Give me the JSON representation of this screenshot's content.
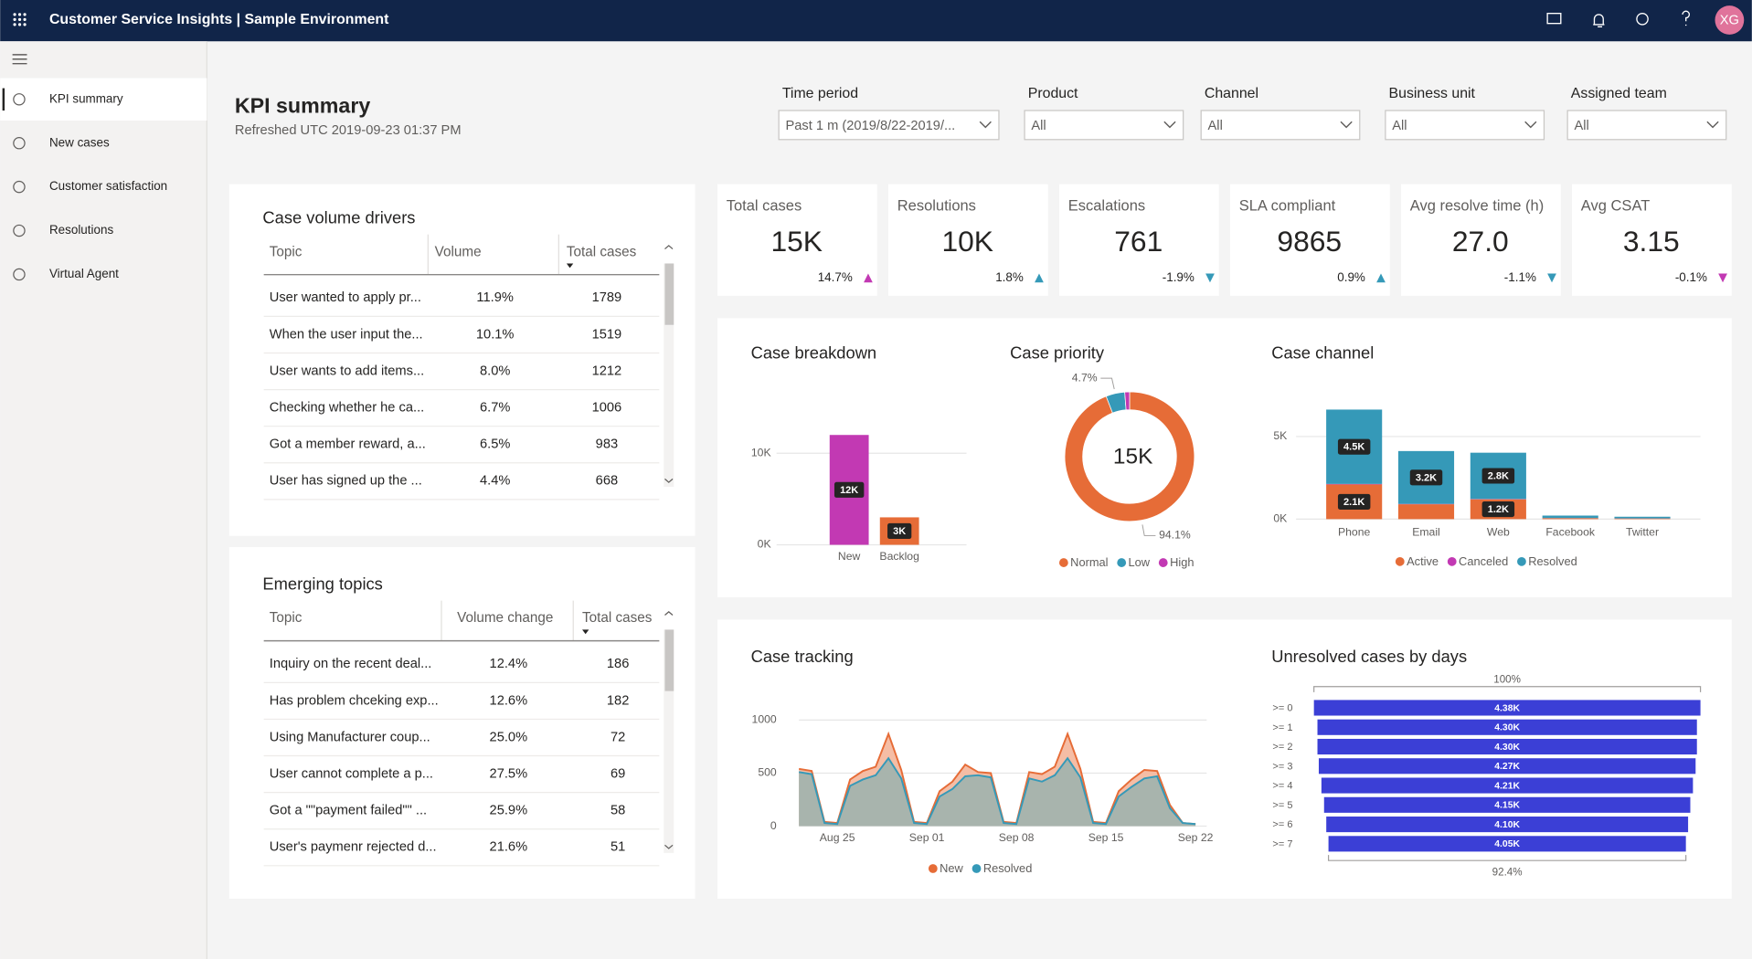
{
  "header": {
    "app_title": "Customer Service Insights | Sample Environment",
    "avatar": "XG"
  },
  "nav": [
    "KPI summary",
    "New cases",
    "Customer satisfaction",
    "Resolutions",
    "Virtual Agent"
  ],
  "page": {
    "title": "KPI summary",
    "refreshed": "Refreshed UTC 2019-09-23 01:37 PM"
  },
  "filters": [
    {
      "label": "Time period",
      "value": "Past 1 m (2019/8/22-2019/..."
    },
    {
      "label": "Product",
      "value": "All"
    },
    {
      "label": "Channel",
      "value": "All"
    },
    {
      "label": "Business unit",
      "value": "All"
    },
    {
      "label": "Assigned team",
      "value": "All"
    }
  ],
  "case_volume_drivers": {
    "title": "Case volume drivers",
    "columns": [
      "Topic",
      "Volume",
      "Total cases"
    ],
    "rows": [
      [
        "User wanted to apply pr...",
        "11.9%",
        "1789"
      ],
      [
        "When the user input the...",
        "10.1%",
        "1519"
      ],
      [
        "User wants to add items...",
        "8.0%",
        "1212"
      ],
      [
        "Checking whether he ca...",
        "6.7%",
        "1006"
      ],
      [
        "Got a member reward, a...",
        "6.5%",
        "983"
      ],
      [
        "User has signed up the ...",
        "4.4%",
        "668"
      ]
    ]
  },
  "emerging_topics": {
    "title": "Emerging topics",
    "columns": [
      "Topic",
      "Volume change",
      "Total cases"
    ],
    "rows": [
      [
        "Inquiry on the recent deal...",
        "12.4%",
        "186"
      ],
      [
        "Has problem chceking exp...",
        "12.6%",
        "182"
      ],
      [
        "Using Manufacturer coup...",
        "25.0%",
        "72"
      ],
      [
        "User cannot complete a p...",
        "27.5%",
        "69"
      ],
      [
        "Got a \"\"payment failed\"\" ...",
        "25.9%",
        "58"
      ],
      [
        "User's paymenr rejected d...",
        "21.6%",
        "51"
      ]
    ]
  },
  "kpis": [
    {
      "label": "Total cases",
      "value": "15K",
      "change": "14.7%",
      "trend": "up",
      "trend_color": "#c239b3"
    },
    {
      "label": "Resolutions",
      "value": "10K",
      "change": "1.8%",
      "trend": "up",
      "trend_color": "#3599b8"
    },
    {
      "label": "Escalations",
      "value": "761",
      "change": "-1.9%",
      "trend": "down",
      "trend_color": "#3599b8"
    },
    {
      "label": "SLA compliant",
      "value": "9865",
      "change": "0.9%",
      "trend": "up",
      "trend_color": "#3599b8"
    },
    {
      "label": "Avg resolve time (h)",
      "value": "27.0",
      "change": "-1.1%",
      "trend": "down",
      "trend_color": "#3599b8"
    },
    {
      "label": "Avg CSAT",
      "value": "3.15",
      "change": "-0.1%",
      "trend": "down",
      "trend_color": "#c239b3"
    }
  ],
  "chart_data": [
    {
      "type": "bar",
      "title": "Case breakdown",
      "categories": [
        "New",
        "Backlog"
      ],
      "values": [
        12000,
        3000
      ],
      "value_labels": [
        "12K",
        "3K"
      ],
      "colors": [
        "#c239b3",
        "#e66c37"
      ],
      "ylim": [
        0,
        12000
      ],
      "yticks": [
        {
          "value": 0,
          "label": "0K"
        },
        {
          "value": 10000,
          "label": "10K"
        }
      ],
      "grid": true
    },
    {
      "type": "donut",
      "title": "Case priority",
      "center_label": "15K",
      "categories": [
        "Normal",
        "Low",
        "High"
      ],
      "values": [
        94.1,
        4.7,
        1.2
      ],
      "value_labels": [
        "94.1%",
        "4.7%",
        null
      ],
      "colors": [
        "#e66c37",
        "#3599b8",
        "#c239b3"
      ]
    },
    {
      "type": "stacked_bar",
      "title": "Case channel",
      "categories": [
        "Phone",
        "Email",
        "Web",
        "Facebook",
        "Twitter"
      ],
      "series": [
        {
          "name": "Active",
          "color": "#e66c37",
          "values": [
            2100,
            900,
            1200,
            60,
            40
          ],
          "value_labels": [
            "2.1K",
            null,
            "1.2K",
            null,
            null
          ]
        },
        {
          "name": "Canceled",
          "color": "#c239b3",
          "values": [
            30,
            20,
            20,
            5,
            5
          ],
          "value_labels": [
            null,
            null,
            null,
            null,
            null
          ]
        },
        {
          "name": "Resolved",
          "color": "#3599b8",
          "values": [
            4500,
            3200,
            2800,
            150,
            100
          ],
          "value_labels": [
            "4.5K",
            "3.2K",
            "2.8K",
            null,
            null
          ]
        }
      ],
      "ylim": [
        0,
        7000
      ],
      "yticks": [
        {
          "value": 0,
          "label": "0K"
        },
        {
          "value": 5000,
          "label": "5K"
        }
      ],
      "grid": true
    },
    {
      "type": "area",
      "title": "Case tracking",
      "categories": [
        null,
        null,
        null,
        "Aug 25",
        null,
        null,
        null,
        null,
        null,
        null,
        "Sep 01",
        null,
        null,
        null,
        null,
        null,
        null,
        "Sep 08",
        null,
        null,
        null,
        null,
        null,
        null,
        "Sep 15",
        null,
        null,
        null,
        null,
        null,
        null,
        "Sep 22"
      ],
      "series": [
        {
          "name": "New",
          "color": "#e66c37",
          "fill": "#f4b9a0",
          "values": [
            540,
            520,
            40,
            30,
            440,
            520,
            560,
            870,
            530,
            40,
            30,
            330,
            420,
            580,
            510,
            500,
            40,
            30,
            510,
            490,
            560,
            870,
            540,
            40,
            30,
            330,
            440,
            530,
            520,
            200,
            30,
            20
          ]
        },
        {
          "name": "Resolved",
          "color": "#3599b8",
          "fill": "#a3b3ad",
          "values": [
            510,
            490,
            30,
            20,
            380,
            440,
            480,
            640,
            450,
            30,
            20,
            280,
            350,
            470,
            480,
            460,
            30,
            20,
            450,
            420,
            480,
            640,
            460,
            30,
            20,
            280,
            370,
            450,
            470,
            170,
            30,
            20
          ]
        }
      ],
      "ylim": [
        0,
        1000
      ],
      "yticks": [
        0,
        500,
        1000
      ],
      "grid": true
    },
    {
      "type": "funnel",
      "title": "Unresolved cases by days",
      "color": "#3b3fd6",
      "top_label": "100%",
      "bottom_label": "92.4%",
      "categories": [
        ">= 0",
        ">= 1",
        ">= 2",
        ">= 3",
        ">= 4",
        ">= 5",
        ">= 6",
        ">= 7"
      ],
      "values": [
        4380,
        4300,
        4300,
        4270,
        4210,
        4150,
        4100,
        4050
      ],
      "value_labels": [
        "4.38K",
        "4.30K",
        "4.30K",
        "4.27K",
        "4.21K",
        "4.15K",
        "4.10K",
        "4.05K"
      ]
    }
  ]
}
